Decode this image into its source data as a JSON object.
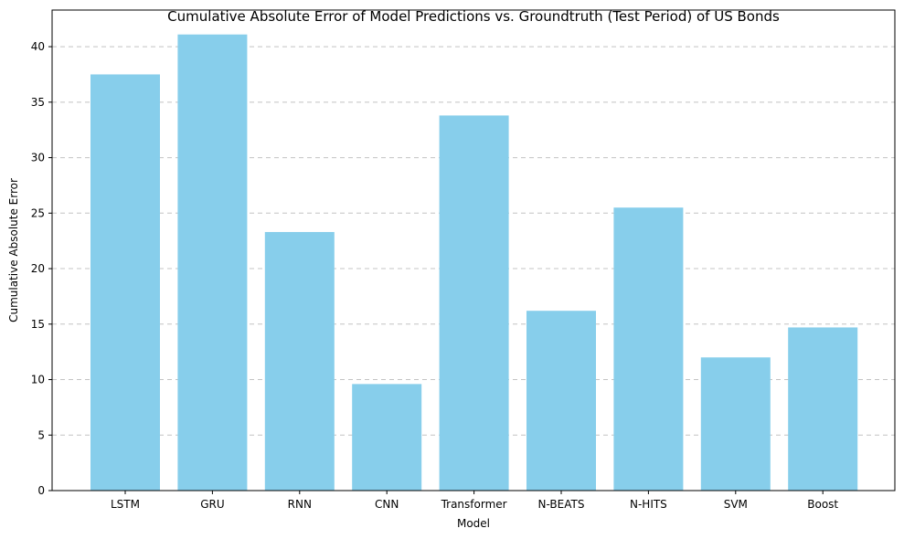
{
  "chart_data": {
    "type": "bar",
    "title": "Cumulative Absolute Error of Model Predictions vs. Groundtruth (Test Period) of US Bonds",
    "xlabel": "Model",
    "ylabel": "Cumulative Absolute Error",
    "categories": [
      "LSTM",
      "GRU",
      "RNN",
      "CNN",
      "Transformer",
      "N-BEATS",
      "N-HITS",
      "SVM",
      "Boost"
    ],
    "values": [
      37.5,
      41.1,
      23.3,
      9.6,
      33.8,
      16.2,
      25.5,
      12.0,
      14.7
    ],
    "ylim": [
      0,
      43.3
    ],
    "yticks": [
      0,
      5,
      10,
      15,
      20,
      25,
      30,
      35,
      40
    ],
    "grid": "y-dashed",
    "bar_color": "#87ceeb"
  }
}
